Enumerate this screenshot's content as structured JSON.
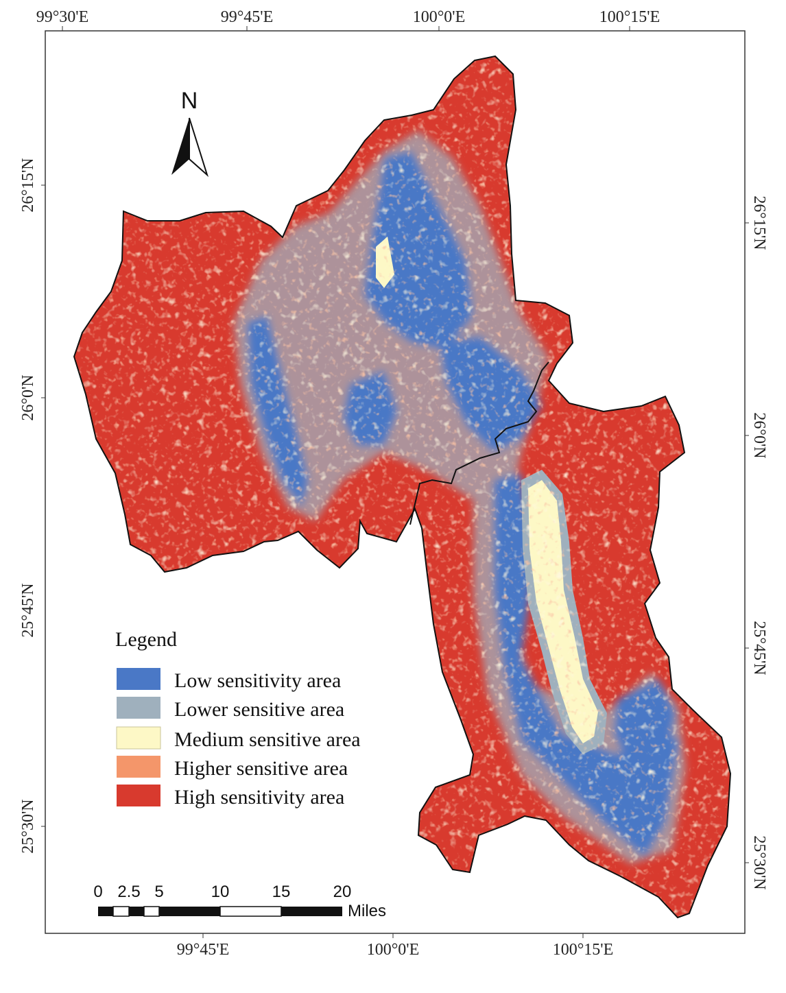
{
  "map": {
    "top_ticks": [
      "99°30'E",
      "99°45'E",
      "100°0'E",
      "100°15'E"
    ],
    "bottom_ticks": [
      "99°45'E",
      "100°0'E",
      "100°15'E"
    ],
    "left_ticks": [
      "26°15'N",
      "26°0'N",
      "25°45'N",
      "25°30'N"
    ],
    "right_ticks": [
      "26°15'N",
      "26°0'N",
      "25°45'N",
      "25°30'N"
    ],
    "north_label": "N",
    "legend": {
      "title": "Legend",
      "items": [
        {
          "label": "Low sensitivity area",
          "color": "#4a78c6"
        },
        {
          "label": "Lower sensitive area",
          "color": "#9fb0bd"
        },
        {
          "label": "Medium sensitive area",
          "color": "#fdf8c6"
        },
        {
          "label": "Higher sensitive area",
          "color": "#f4966a"
        },
        {
          "label": "High sensitivity area",
          "color": "#d83a2e"
        }
      ]
    },
    "scale_bar": {
      "ticks": [
        "0",
        "2.5",
        "5",
        "10",
        "15",
        "20"
      ],
      "unit": "Miles"
    }
  }
}
